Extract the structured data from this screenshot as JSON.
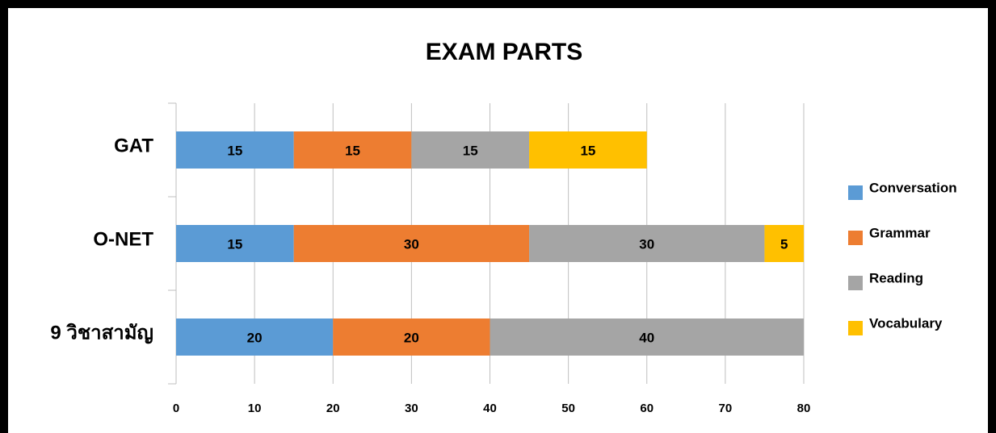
{
  "chart_data": {
    "type": "bar",
    "orientation": "horizontal",
    "stacked": true,
    "title": "EXAM PARTS",
    "categories": [
      "GAT",
      "O-NET",
      "9 วิชาสามัญ"
    ],
    "series": [
      {
        "name": "Conversation",
        "color": "#5b9bd5",
        "values": [
          15,
          15,
          20
        ]
      },
      {
        "name": "Grammar",
        "color": "#ed7d31",
        "values": [
          15,
          30,
          20
        ]
      },
      {
        "name": "Reading",
        "color": "#a5a5a5",
        "values": [
          15,
          30,
          40
        ]
      },
      {
        "name": "Vocabulary",
        "color": "#ffc000",
        "values": [
          15,
          5,
          null
        ]
      }
    ],
    "xlim": [
      0,
      80
    ],
    "xticks": [
      0,
      10,
      20,
      30,
      40,
      50,
      60,
      70,
      80
    ],
    "grid": true,
    "legend": "right"
  }
}
